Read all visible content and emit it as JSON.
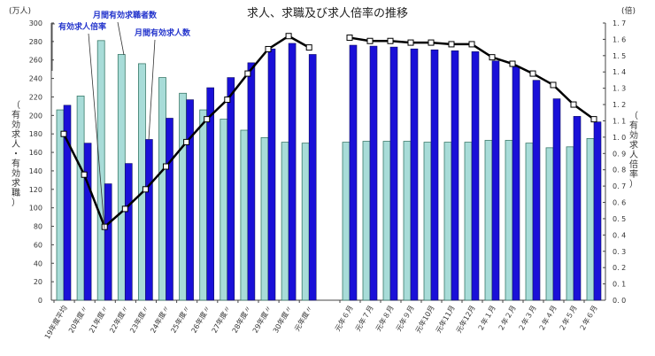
{
  "chart_data": {
    "type": "bar",
    "title": "求人、求職及び求人倍率の推移",
    "left_axis": {
      "unit": "(万人)",
      "label": "（有効求人・有効求職）",
      "ylim": [
        0,
        300
      ],
      "ticks": [
        "0",
        "20",
        "40",
        "60",
        "80",
        "100",
        "120",
        "140",
        "160",
        "180",
        "200",
        "220",
        "240",
        "260",
        "280",
        "300"
      ]
    },
    "right_axis": {
      "unit": "(倍)",
      "label": "（有効求人倍率）",
      "ylim": [
        0,
        1.7
      ],
      "ticks": [
        "0.0",
        "0.1",
        "0.2",
        "0.3",
        "0.4",
        "0.5",
        "0.6",
        "0.7",
        "0.8",
        "0.9",
        "1.0",
        "1.1",
        "1.2",
        "1.3",
        "1.4",
        "1.5",
        "1.6",
        "1.7"
      ]
    },
    "categories": [
      "19年度平均",
      "20年度〃",
      "21年度〃",
      "22年度〃",
      "23年度〃",
      "24年度〃",
      "25年度〃",
      "26年度〃",
      "27年度〃",
      "28年度〃",
      "29年度〃",
      "30年度〃",
      "元年度〃",
      "元年６月",
      "元年７月",
      "元年８月",
      "元年９月",
      "元年10月",
      "元年11月",
      "元年12月",
      "２年１月",
      "２年２月",
      "２年３月",
      "２年４月",
      "２年５月",
      "２年６月"
    ],
    "group_break_after_index": 12,
    "series": [
      {
        "name": "月間有効求職者数",
        "type": "bar",
        "axis": "left",
        "color": "#a8dcd8",
        "values": [
          206,
          221,
          281,
          266,
          256,
          241,
          224,
          206,
          196,
          184,
          176,
          171,
          170,
          171,
          172,
          172,
          172,
          171,
          171,
          171,
          173,
          173,
          170,
          165,
          166,
          175
        ]
      },
      {
        "name": "月間有効求人数",
        "type": "bar",
        "axis": "left",
        "color": "#1a10d8",
        "values": [
          211,
          170,
          126,
          148,
          174,
          197,
          217,
          230,
          241,
          257,
          272,
          278,
          266,
          276,
          275,
          274,
          272,
          271,
          270,
          269,
          259,
          253,
          238,
          218,
          199,
          193
        ]
      },
      {
        "name": "有効求人倍率",
        "type": "line",
        "axis": "right",
        "color": "#000000",
        "values": [
          1.02,
          0.77,
          0.45,
          0.56,
          0.68,
          0.82,
          0.97,
          1.11,
          1.23,
          1.39,
          1.54,
          1.62,
          1.55,
          1.61,
          1.59,
          1.59,
          1.58,
          1.58,
          1.57,
          1.57,
          1.49,
          1.45,
          1.39,
          1.32,
          1.2,
          1.11
        ]
      }
    ],
    "legend_callouts": [
      {
        "label": "有効求人倍率",
        "points_to": "line"
      },
      {
        "label": "月間有効求職者数",
        "points_to": "light bar"
      },
      {
        "label": "月間有効求人数",
        "points_to": "dark bar"
      }
    ],
    "grid": false
  }
}
